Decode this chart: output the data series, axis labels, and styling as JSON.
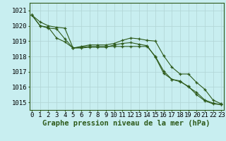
{
  "hours": [
    0,
    1,
    2,
    3,
    4,
    5,
    6,
    7,
    8,
    9,
    10,
    11,
    12,
    13,
    14,
    15,
    16,
    17,
    18,
    19,
    20,
    21,
    22,
    23
  ],
  "series1": [
    1020.7,
    1020.25,
    1020.0,
    1019.9,
    1019.85,
    1018.55,
    1018.65,
    1018.75,
    1018.75,
    1018.75,
    1018.85,
    1019.05,
    1019.2,
    1019.15,
    1019.05,
    1019.0,
    1018.05,
    1017.3,
    1016.85,
    1016.85,
    1016.3,
    1015.85,
    1015.15,
    1014.9
  ],
  "series2": [
    1020.7,
    1020.0,
    1019.85,
    1019.8,
    1019.15,
    1018.55,
    1018.6,
    1018.65,
    1018.65,
    1018.65,
    1018.65,
    1018.65,
    1018.65,
    1018.65,
    1018.65,
    1018.0,
    1017.05,
    1016.5,
    1016.35,
    1016.05,
    1015.5,
    1015.1,
    1014.9,
    1014.85
  ],
  "series3": [
    1020.7,
    1020.0,
    1019.9,
    1019.2,
    1018.95,
    1018.55,
    1018.55,
    1018.6,
    1018.6,
    1018.6,
    1018.75,
    1018.85,
    1018.9,
    1018.8,
    1018.7,
    1017.95,
    1016.9,
    1016.5,
    1016.4,
    1016.0,
    1015.65,
    1015.15,
    1014.95,
    1014.85
  ],
  "line_color": "#2d5a1b",
  "bg_color": "#c8eef0",
  "grid_color": "#b0d4d4",
  "xlabel": "Graphe pression niveau de la mer (hPa)",
  "ylim_min": 1014.5,
  "ylim_max": 1021.5,
  "yticks": [
    1015,
    1016,
    1017,
    1018,
    1019,
    1020,
    1021
  ],
  "xlabel_fontsize": 7.5,
  "tick_fontsize": 6.5
}
